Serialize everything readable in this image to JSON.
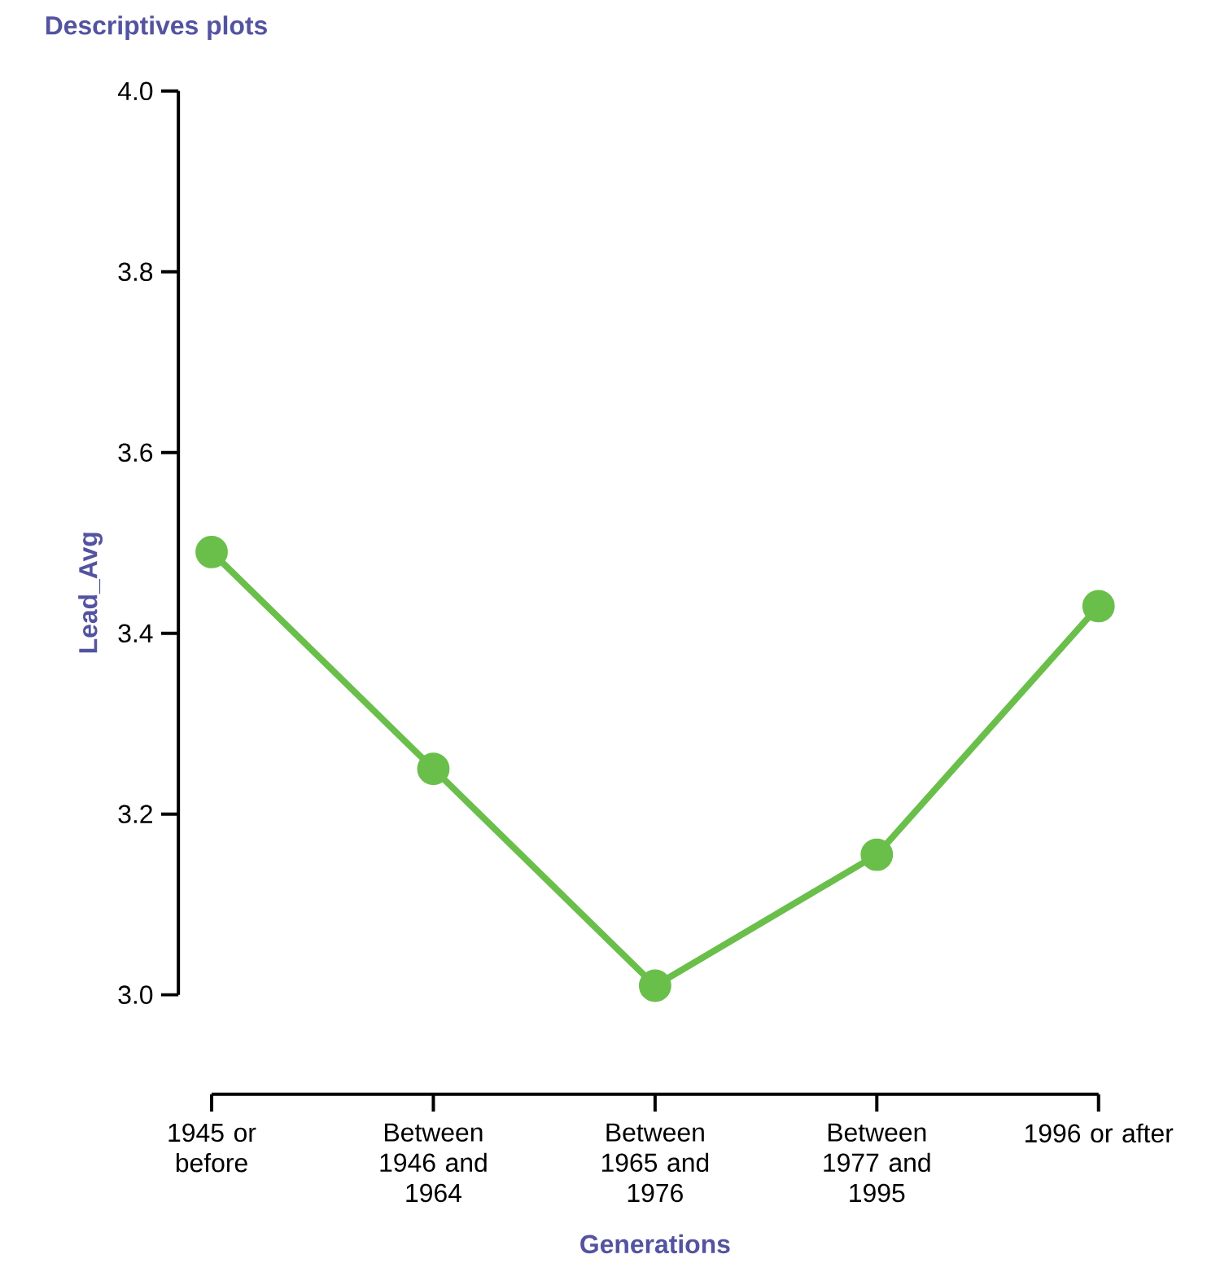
{
  "chart_data": {
    "type": "line",
    "title": "Descriptives plots",
    "xlabel": "Generations",
    "ylabel": "Lead_Avg",
    "categories": [
      "1945 or before",
      "Between 1946 and 1964",
      "Between 1965 and 1976",
      "Between 1977 and 1995",
      "1996 or after"
    ],
    "series": [
      {
        "color": "#6abf4b",
        "values": [
          3.49,
          3.25,
          3.01,
          3.155,
          3.43
        ]
      }
    ],
    "ylim": [
      3.0,
      4.0
    ],
    "yticks": [
      {
        "value": 3.0,
        "label": "3.0"
      },
      3.2,
      3.4,
      3.6,
      3.8,
      {
        "value": 4.0,
        "label": "4.0"
      }
    ],
    "marker": "circle",
    "line_style": "solid"
  }
}
